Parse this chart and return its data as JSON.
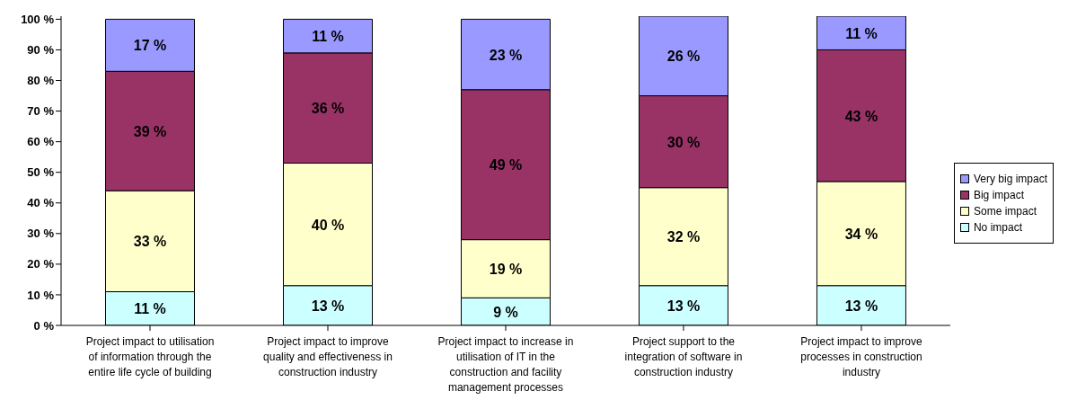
{
  "chart_data": {
    "type": "bar",
    "stacked": true,
    "categories": [
      "Project impact to utilisation of information through the entire life cycle of building",
      "Project impact to improve quality and effectiveness in construction industry",
      "Project impact to increase in utilisation of IT in the construction and facility management processes",
      "Project support to the integration of software in construction industry",
      "Project impact to improve processes in construction industry"
    ],
    "series": [
      {
        "name": "No impact",
        "color": "#ccffff",
        "values": [
          11,
          13,
          9,
          13,
          13
        ],
        "value_labels": [
          "11 %",
          "13 %",
          "9 %",
          "13 %",
          "13 %"
        ]
      },
      {
        "name": "Some impact",
        "color": "#ffffcc",
        "values": [
          33,
          40,
          19,
          32,
          34
        ],
        "value_labels": [
          "33 %",
          "40 %",
          "19 %",
          "32 %",
          "34 %"
        ]
      },
      {
        "name": "Big impact",
        "color": "#993366",
        "values": [
          39,
          36,
          49,
          30,
          43
        ],
        "value_labels": [
          "39 %",
          "36 %",
          "49 %",
          "30 %",
          "43 %"
        ]
      },
      {
        "name": "Very big impact",
        "color": "#9999ff",
        "values": [
          17,
          11,
          23,
          26,
          11
        ],
        "value_labels": [
          "17 %",
          "11 %",
          "23 %",
          "26 %",
          "11 %"
        ]
      }
    ],
    "ylim": [
      0,
      101
    ],
    "yticks": [
      {
        "value": 0,
        "label": "0 %"
      },
      {
        "value": 10,
        "label": "10 %"
      },
      {
        "value": 20,
        "label": "20 %"
      },
      {
        "value": 30,
        "label": "30 %"
      },
      {
        "value": 40,
        "label": "40 %"
      },
      {
        "value": 50,
        "label": "50 %"
      },
      {
        "value": 60,
        "label": "60 %"
      },
      {
        "value": 70,
        "label": "70 %"
      },
      {
        "value": 80,
        "label": "80 %"
      },
      {
        "value": 90,
        "label": "90 %"
      },
      {
        "value": 100,
        "label": "100 %"
      }
    ],
    "grid": false,
    "legend": "right"
  }
}
